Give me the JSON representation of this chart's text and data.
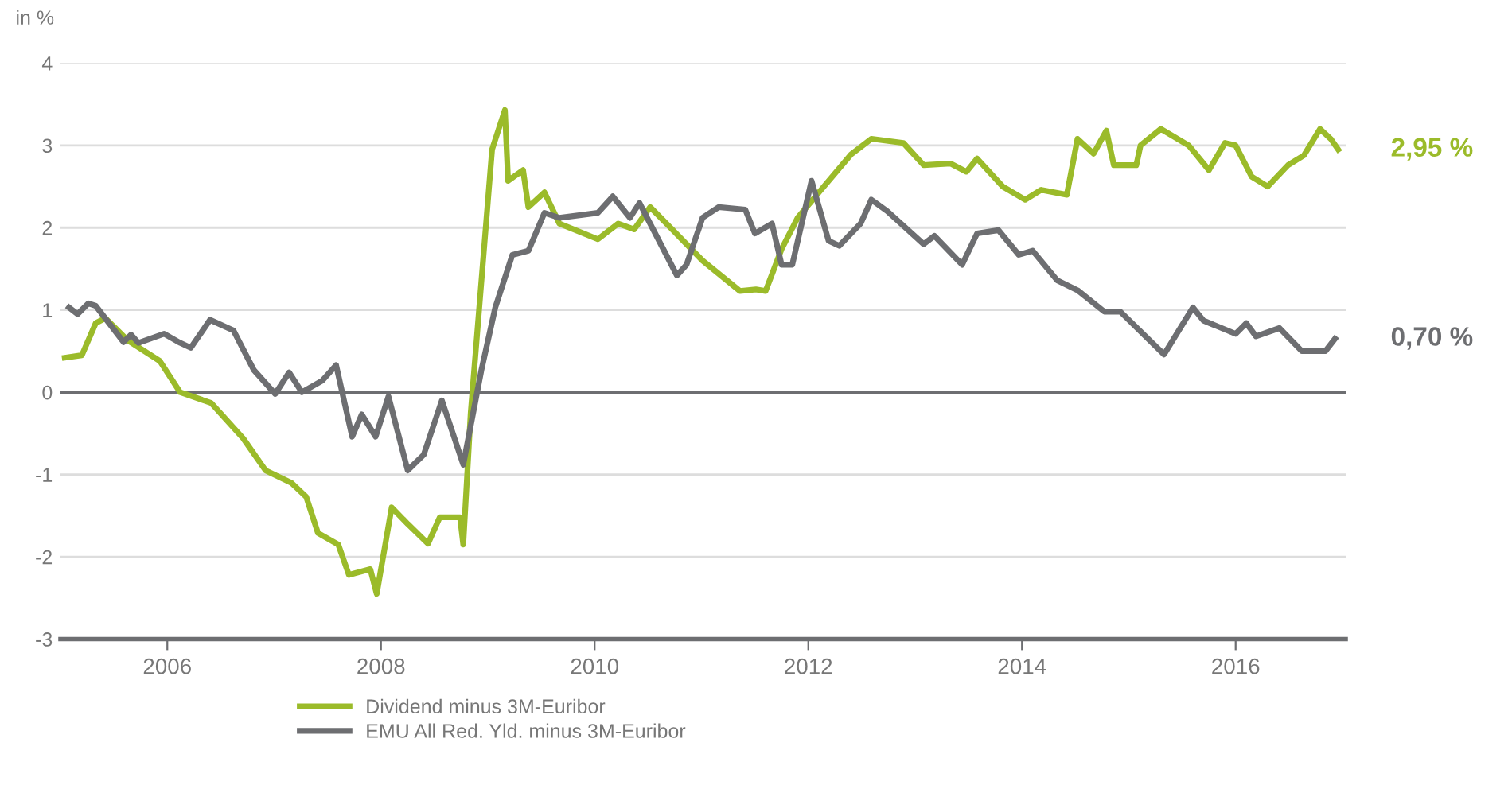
{
  "chart_data": {
    "type": "line",
    "ylabel": "in %",
    "xlim": [
      2005.0,
      2017.03
    ],
    "xticks": [
      2006,
      2008,
      2010,
      2012,
      2014,
      2016
    ],
    "ylim": [
      -3,
      4
    ],
    "yticks": [
      -3,
      -2,
      -1,
      0,
      1,
      2,
      3,
      4
    ],
    "grid": "y",
    "legend": "bottom",
    "line_style": "solid",
    "ref_lines": [
      {
        "axis": "y",
        "value": 0,
        "color": "#6d6e71"
      }
    ],
    "annotations": [
      "2,95 %",
      "0,70 %"
    ],
    "series": [
      {
        "name": "Dividend minus 3M-Euribor",
        "color": "#9bbb2a",
        "x": [
          2005.04,
          2005.2,
          2005.33,
          2005.42,
          2005.63,
          2005.93,
          2006.12,
          2006.41,
          2006.71,
          2006.92,
          2007.16,
          2007.3,
          2007.41,
          2007.6,
          2007.7,
          2007.9,
          2007.96,
          2008.1,
          2008.25,
          2008.44,
          2008.55,
          2008.74,
          2008.77,
          2008.84,
          2009.04,
          2009.16,
          2009.19,
          2009.33,
          2009.38,
          2009.53,
          2009.67,
          2010.03,
          2010.22,
          2010.37,
          2010.52,
          2010.71,
          2011.01,
          2011.36,
          2011.51,
          2011.6,
          2011.75,
          2011.9,
          2012.1,
          2012.4,
          2012.59,
          2012.89,
          2013.08,
          2013.33,
          2013.48,
          2013.58,
          2013.82,
          2014.03,
          2014.18,
          2014.42,
          2014.52,
          2014.67,
          2014.79,
          2014.86,
          2015.07,
          2015.11,
          2015.3,
          2015.56,
          2015.75,
          2015.9,
          2016.0,
          2016.15,
          2016.3,
          2016.49,
          2016.64,
          2016.79,
          2016.89,
          2016.96
        ],
        "values": [
          0.42,
          0.45,
          0.84,
          0.9,
          0.63,
          0.38,
          0.0,
          -0.13,
          -0.56,
          -0.95,
          -1.1,
          -1.27,
          -1.71,
          -1.85,
          -2.22,
          -2.15,
          -2.45,
          -1.4,
          -1.6,
          -1.84,
          -1.52,
          -1.52,
          -1.85,
          -0.25,
          2.95,
          3.43,
          2.57,
          2.7,
          2.25,
          2.43,
          2.05,
          1.86,
          2.05,
          1.98,
          2.25,
          2.0,
          1.6,
          1.23,
          1.25,
          1.23,
          1.74,
          2.12,
          2.43,
          2.89,
          3.08,
          3.03,
          2.76,
          2.78,
          2.68,
          2.84,
          2.5,
          2.34,
          2.46,
          2.4,
          3.08,
          2.9,
          3.18,
          2.76,
          2.76,
          3.0,
          3.2,
          3.0,
          2.7,
          3.03,
          3.0,
          2.62,
          2.5,
          2.76,
          2.88,
          3.2,
          3.08,
          2.95
        ]
      },
      {
        "name": "EMU All Red. Yld. minus 3M-Euribor",
        "color": "#6d6e71",
        "x": [
          2005.08,
          2005.16,
          2005.26,
          2005.33,
          2005.59,
          2005.66,
          2005.73,
          2005.97,
          2006.12,
          2006.22,
          2006.4,
          2006.62,
          2006.81,
          2007.01,
          2007.14,
          2007.26,
          2007.45,
          2007.58,
          2007.73,
          2007.82,
          2007.95,
          2008.07,
          2008.25,
          2008.4,
          2008.57,
          2008.77,
          2008.94,
          2009.07,
          2009.23,
          2009.38,
          2009.53,
          2009.67,
          2010.03,
          2010.17,
          2010.33,
          2010.42,
          2010.77,
          2010.86,
          2011.01,
          2011.16,
          2011.41,
          2011.5,
          2011.66,
          2011.75,
          2011.85,
          2012.03,
          2012.19,
          2012.29,
          2012.49,
          2012.59,
          2012.74,
          2013.08,
          2013.18,
          2013.44,
          2013.58,
          2013.78,
          2013.97,
          2014.1,
          2014.33,
          2014.52,
          2014.77,
          2014.92,
          2015.33,
          2015.6,
          2015.7,
          2016.0,
          2016.1,
          2016.19,
          2016.41,
          2016.62,
          2016.84,
          2016.93
        ],
        "values": [
          1.03,
          0.95,
          1.08,
          1.05,
          0.61,
          0.7,
          0.6,
          0.71,
          0.6,
          0.54,
          0.88,
          0.75,
          0.27,
          -0.02,
          0.24,
          0.0,
          0.14,
          0.33,
          -0.54,
          -0.27,
          -0.54,
          -0.05,
          -0.95,
          -0.76,
          -0.1,
          -0.88,
          0.27,
          1.03,
          1.67,
          1.72,
          2.18,
          2.12,
          2.18,
          2.38,
          2.12,
          2.3,
          1.42,
          1.55,
          2.12,
          2.25,
          2.22,
          1.93,
          2.05,
          1.55,
          1.55,
          2.57,
          1.84,
          1.78,
          2.05,
          2.34,
          2.2,
          1.8,
          1.9,
          1.55,
          1.93,
          1.97,
          1.67,
          1.72,
          1.36,
          1.24,
          0.98,
          0.98,
          0.46,
          1.03,
          0.87,
          0.71,
          0.84,
          0.68,
          0.78,
          0.5,
          0.5,
          0.65
        ]
      }
    ]
  }
}
